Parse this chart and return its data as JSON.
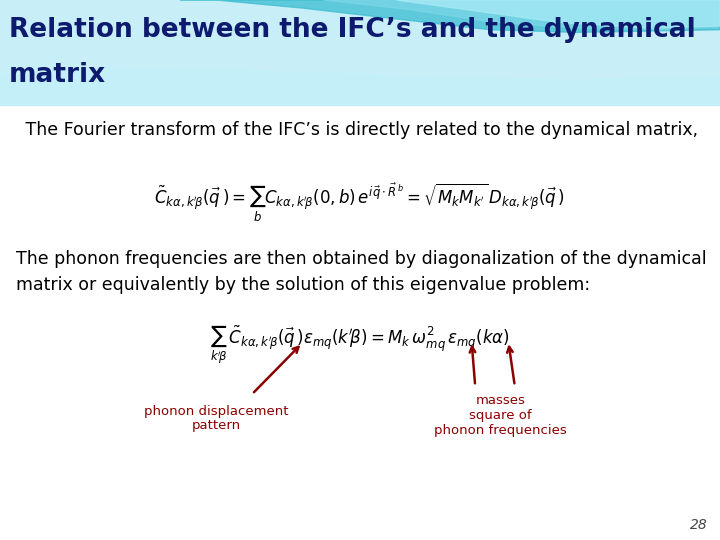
{
  "title_line1": "Relation between the IFC’s and the dynamical",
  "title_line2": "matrix",
  "title_color": "#0d1a6e",
  "title_fontsize": 19,
  "bg_color": "#ffffff",
  "header_bg_color": "#c8eff8",
  "text1": "   The Fourier transform of the IFC’s is directly related to the dynamical matrix,",
  "text1_fontsize": 12.5,
  "text2_line1": "The phonon frequencies are then obtained by diagonalization of the dynamical",
  "text2_line2": "matrix or equivalently by the solution of this eigenvalue problem:",
  "text2_fontsize": 12.5,
  "arrow_color": "#8b0000",
  "annotation_color": "#8b0000",
  "annot1": "phonon displacement\npattern",
  "annot2": "masses\nsquare of\nphonon frequencies",
  "page_number": "28"
}
